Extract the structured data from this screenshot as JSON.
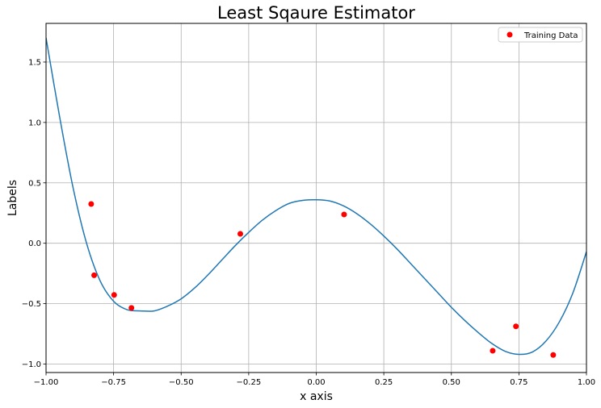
{
  "chart_data": {
    "type": "line",
    "title": "Least Sqaure Estimator",
    "xlabel": "x axis",
    "ylabel": "Labels",
    "xlim": [
      -1.0,
      1.0
    ],
    "ylim": [
      -1.07,
      1.82
    ],
    "grid": true,
    "legend_position": "top-right",
    "x_ticks": [
      {
        "value": -1.0,
        "label": "−1.00"
      },
      {
        "value": -0.75,
        "label": "−0.75"
      },
      {
        "value": -0.5,
        "label": "−0.50"
      },
      {
        "value": -0.25,
        "label": "−0.25"
      },
      {
        "value": 0.0,
        "label": "0.00"
      },
      {
        "value": 0.25,
        "label": "0.25"
      },
      {
        "value": 0.5,
        "label": "0.50"
      },
      {
        "value": 0.75,
        "label": "0.75"
      },
      {
        "value": 1.0,
        "label": "1.00"
      }
    ],
    "y_ticks": [
      {
        "value": -1.0,
        "label": "−1.0"
      },
      {
        "value": -0.5,
        "label": "−0.5"
      },
      {
        "value": 0.0,
        "label": "0.0"
      },
      {
        "value": 0.5,
        "label": "0.5"
      },
      {
        "value": 1.0,
        "label": "1.0"
      },
      {
        "value": 1.5,
        "label": "1.5"
      }
    ],
    "series": [
      {
        "kind": "line",
        "color": "#1f77b4",
        "x": [
          -1.0,
          -0.95,
          -0.9,
          -0.85,
          -0.8,
          -0.75,
          -0.7,
          -0.65,
          -0.6,
          -0.55,
          -0.5,
          -0.45,
          -0.4,
          -0.35,
          -0.3,
          -0.25,
          -0.2,
          -0.15,
          -0.1,
          -0.05,
          0.0,
          0.05,
          0.1,
          0.15,
          0.2,
          0.25,
          0.3,
          0.35,
          0.4,
          0.45,
          0.5,
          0.55,
          0.6,
          0.65,
          0.7,
          0.75,
          0.8,
          0.85,
          0.9,
          0.95,
          1.0
        ],
        "y": [
          1.7,
          1.05,
          0.46,
          0.0,
          -0.31,
          -0.48,
          -0.55,
          -0.56,
          -0.56,
          -0.52,
          -0.46,
          -0.37,
          -0.26,
          -0.14,
          -0.02,
          0.09,
          0.19,
          0.27,
          0.33,
          0.355,
          0.36,
          0.35,
          0.31,
          0.245,
          0.16,
          0.06,
          -0.05,
          -0.17,
          -0.29,
          -0.41,
          -0.53,
          -0.64,
          -0.74,
          -0.83,
          -0.895,
          -0.92,
          -0.9,
          -0.81,
          -0.65,
          -0.41,
          -0.07
        ]
      },
      {
        "kind": "scatter",
        "name": "Training Data",
        "color": "#ff0000",
        "x": [
          -0.833,
          -0.822,
          -0.748,
          -0.684,
          -0.281,
          0.103,
          0.653,
          0.739,
          0.877
        ],
        "y": [
          0.325,
          -0.265,
          -0.428,
          -0.535,
          0.078,
          0.238,
          -0.89,
          -0.688,
          -0.925
        ]
      }
    ]
  }
}
